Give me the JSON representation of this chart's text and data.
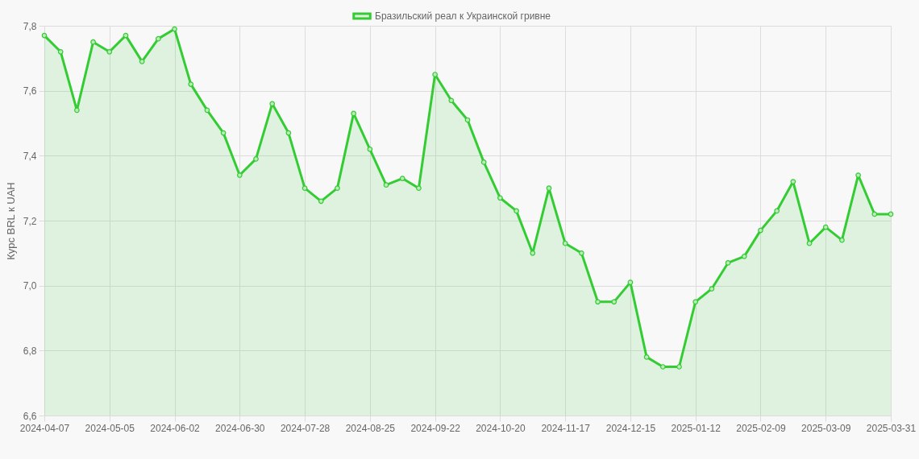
{
  "chart_data": {
    "type": "area",
    "ylabel": "Курс BRL к UAH",
    "categories": [
      "2024-04-07",
      null,
      null,
      null,
      "2024-05-05",
      null,
      null,
      null,
      "2024-06-02",
      null,
      null,
      null,
      "2024-06-30",
      null,
      null,
      null,
      "2024-07-28",
      null,
      null,
      null,
      "2024-08-25",
      null,
      null,
      null,
      "2024-09-22",
      null,
      null,
      null,
      "2024-10-20",
      null,
      null,
      null,
      "2024-11-17",
      null,
      null,
      null,
      "2024-12-15",
      null,
      null,
      null,
      "2025-01-12",
      null,
      null,
      null,
      "2025-02-09",
      null,
      null,
      null,
      "2025-03-09",
      null,
      null,
      null,
      "2025-03-31"
    ],
    "series": [
      {
        "name": "Бразильский реал к Украинской гривне",
        "color": "#33cc33",
        "values": [
          7.77,
          7.72,
          7.54,
          7.75,
          7.72,
          7.77,
          7.69,
          7.76,
          7.79,
          7.62,
          7.54,
          7.47,
          7.34,
          7.39,
          7.56,
          7.47,
          7.3,
          7.26,
          7.3,
          7.53,
          7.42,
          7.31,
          7.33,
          7.3,
          7.65,
          7.57,
          7.51,
          7.38,
          7.27,
          7.23,
          7.1,
          7.3,
          7.13,
          7.1,
          6.95,
          6.95,
          7.01,
          6.78,
          6.75,
          6.75,
          6.95,
          6.99,
          7.07,
          7.09,
          7.17,
          7.23,
          7.32,
          7.13,
          7.18,
          7.14,
          7.34,
          7.22,
          7.22
        ]
      }
    ],
    "ylim": [
      6.6,
      7.8
    ],
    "yticks": [
      {
        "value": 6.6,
        "label": "6,6"
      },
      {
        "value": 6.8,
        "label": "6,8"
      },
      {
        "value": 7.0,
        "label": "7,0"
      },
      {
        "value": 7.2,
        "label": "7,2"
      },
      {
        "value": 7.4,
        "label": "7,4"
      },
      {
        "value": 7.6,
        "label": "7,6"
      },
      {
        "value": 7.8,
        "label": "7,8"
      }
    ],
    "grid": true,
    "legend": "top",
    "marker": "circle",
    "line_style": "solid"
  }
}
